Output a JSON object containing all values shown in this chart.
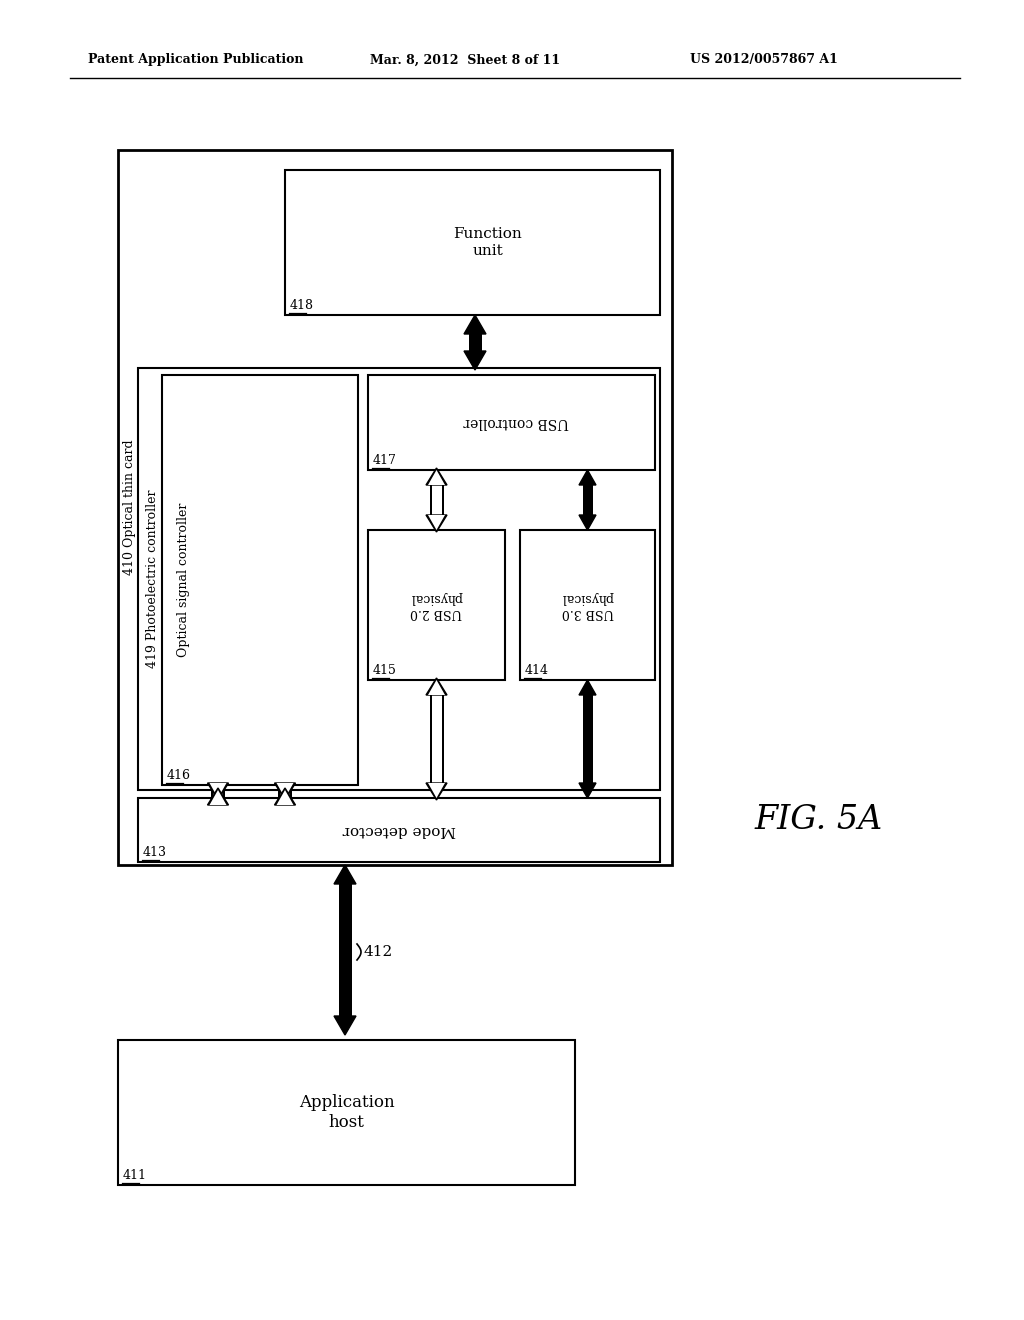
{
  "bg_color": "#ffffff",
  "header_left": "Patent Application Publication",
  "header_mid": "Mar. 8, 2012  Sheet 8 of 11",
  "header_right": "US 2012/0057867 A1",
  "fig_label": "FIG. 5A",
  "title_410": "410 Optical thin card",
  "box_411_label": "411",
  "box_411_text": "Application\nhost",
  "box_418_label": "418",
  "box_418_text": "Function\nunit",
  "box_413_label": "413",
  "box_413_text": "Mode detector",
  "box_416_label": "416",
  "box_416_text": "Optical signal controller",
  "box_419_label": "419",
  "box_419_text": "419 Photoelectric controller",
  "box_417_label": "417",
  "box_417_text": "USB controller",
  "box_415_label": "415",
  "box_415_text": "USB 2.0\nphysical",
  "box_414_label": "414",
  "box_414_text": "USB 3.0\nphysical",
  "label_412": "412"
}
